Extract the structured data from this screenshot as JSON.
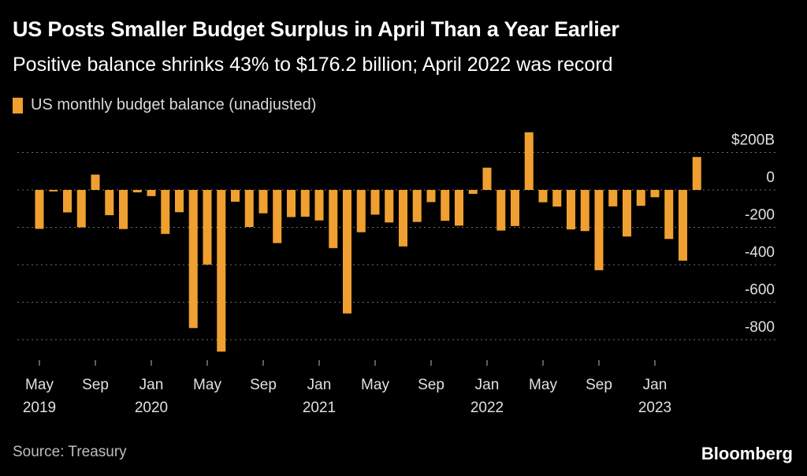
{
  "chart_data": {
    "type": "bar",
    "title": "US Posts Smaller Budget Surplus in April Than a Year Earlier",
    "subtitle": "Positive balance shrinks 43% to $176.2 billion; April 2022 was record",
    "legend": "US monthly budget balance (unadjusted)",
    "source": "Source: Treasury",
    "brand": "Bloomberg",
    "bar_color": "#f0a030",
    "ylim": [
      -860,
      310
    ],
    "y_ticks": [
      {
        "value": 200,
        "label": "$200B"
      },
      {
        "value": 0,
        "label": "0"
      },
      {
        "value": -200,
        "label": "-200"
      },
      {
        "value": -400,
        "label": "-400"
      },
      {
        "value": -600,
        "label": "-600"
      },
      {
        "value": -800,
        "label": "-800"
      }
    ],
    "x_ticks": [
      {
        "index": 0,
        "month": "May",
        "year": "2019"
      },
      {
        "index": 4,
        "month": "Sep",
        "year": ""
      },
      {
        "index": 8,
        "month": "Jan",
        "year": "2020"
      },
      {
        "index": 12,
        "month": "May",
        "year": ""
      },
      {
        "index": 16,
        "month": "Sep",
        "year": ""
      },
      {
        "index": 20,
        "month": "Jan",
        "year": "2021"
      },
      {
        "index": 24,
        "month": "May",
        "year": ""
      },
      {
        "index": 28,
        "month": "Sep",
        "year": ""
      },
      {
        "index": 32,
        "month": "Jan",
        "year": "2022"
      },
      {
        "index": 36,
        "month": "May",
        "year": ""
      },
      {
        "index": 40,
        "month": "Sep",
        "year": ""
      },
      {
        "index": 44,
        "month": "Jan",
        "year": "2023"
      }
    ],
    "categories": [
      "2019-05",
      "2019-06",
      "2019-07",
      "2019-08",
      "2019-09",
      "2019-10",
      "2019-11",
      "2019-12",
      "2020-01",
      "2020-02",
      "2020-03",
      "2020-04",
      "2020-05",
      "2020-06",
      "2020-07",
      "2020-08",
      "2020-09",
      "2020-10",
      "2020-11",
      "2020-12",
      "2021-01",
      "2021-02",
      "2021-03",
      "2021-04",
      "2021-05",
      "2021-06",
      "2021-07",
      "2021-08",
      "2021-09",
      "2021-10",
      "2021-11",
      "2021-12",
      "2022-01",
      "2022-02",
      "2022-03",
      "2022-04",
      "2022-05",
      "2022-06",
      "2022-07",
      "2022-08",
      "2022-09",
      "2022-10",
      "2022-11",
      "2022-12",
      "2023-01",
      "2023-02",
      "2023-03",
      "2023-04"
    ],
    "values": [
      -208,
      -8,
      -120,
      -200,
      82,
      -135,
      -209,
      -13,
      -33,
      -235,
      -119,
      -738,
      -399,
      -864,
      -63,
      -198,
      -125,
      -284,
      -145,
      -143,
      -163,
      -311,
      -660,
      -226,
      -132,
      -174,
      -302,
      -171,
      -65,
      -165,
      -191,
      -21,
      119,
      -217,
      -193,
      308,
      -66,
      -89,
      -211,
      -220,
      -429,
      -88,
      -249,
      -85,
      -39,
      -262,
      -378,
      176
    ]
  }
}
